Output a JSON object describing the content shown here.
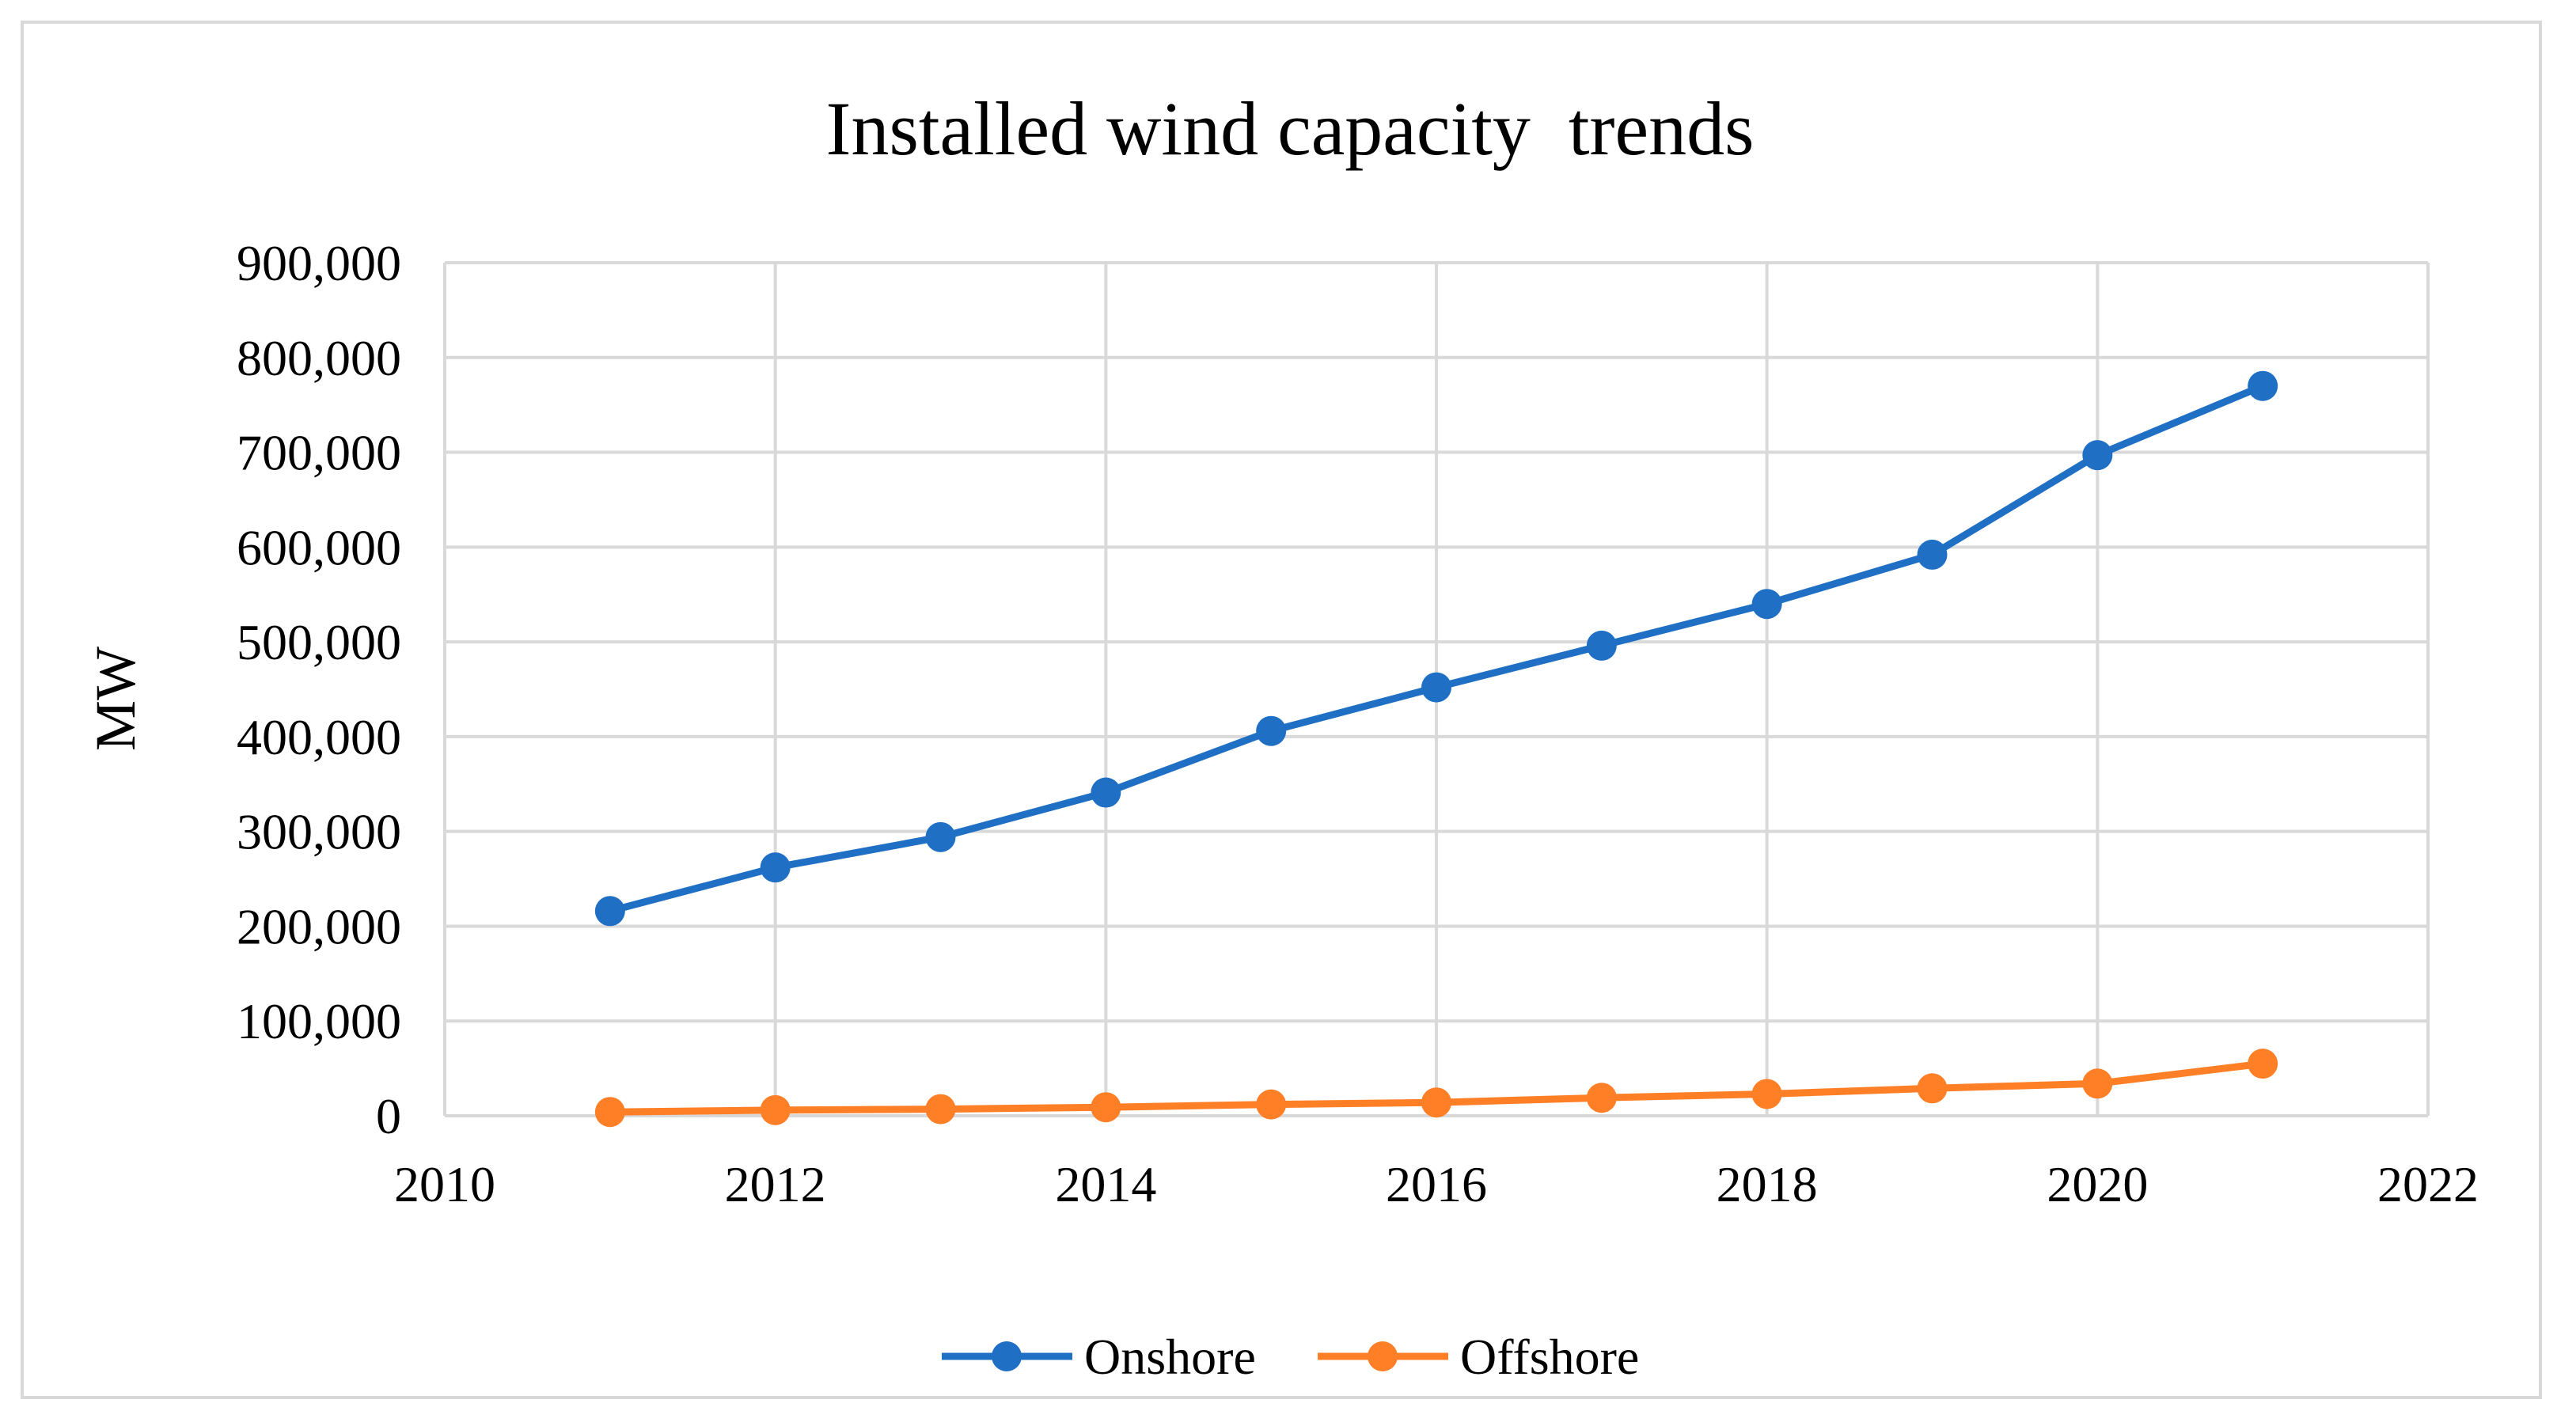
{
  "chart_data": {
    "type": "scatter",
    "mode": "lines+markers",
    "title": "Installed wind capacity  trends",
    "xlabel": "",
    "ylabel": "MW",
    "xlim": [
      2010,
      2022
    ],
    "ylim": [
      0,
      900000
    ],
    "x_ticks": [
      "2010",
      "2012",
      "2014",
      "2016",
      "2018",
      "2020",
      "2022"
    ],
    "y_ticks": [
      "0",
      "100,000",
      "200,000",
      "300,000",
      "400,000",
      "500,000",
      "600,000",
      "700,000",
      "800,000",
      "900,000"
    ],
    "grid": true,
    "legend_position": "bottom",
    "x": [
      2011,
      2012,
      2013,
      2014,
      2015,
      2016,
      2017,
      2018,
      2019,
      2020,
      2021
    ],
    "series": [
      {
        "name": "Onshore",
        "color": "#1f6fc5",
        "values": [
          216000,
          262000,
          294000,
          341000,
          406000,
          452000,
          496000,
          540000,
          592000,
          697000,
          770000
        ]
      },
      {
        "name": "Offshore",
        "color": "#ff7f27",
        "values": [
          4000,
          6000,
          7000,
          9000,
          12000,
          14000,
          19000,
          23000,
          29000,
          34000,
          55000
        ]
      }
    ]
  }
}
